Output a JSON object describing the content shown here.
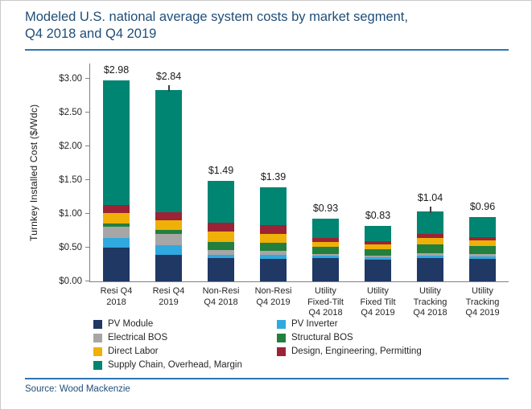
{
  "title": "Modeled U.S. national average system costs by market segment,\nQ4 2018 and Q4 2019",
  "source_label": "Source: Wood Mackenzie",
  "colors": {
    "title_text": "#1F4E79",
    "divider": "#2E75B6",
    "axis": "#7F7F7F",
    "source_text": "#1F4E79"
  },
  "chart_data": {
    "type": "bar",
    "stacked": true,
    "title": "Modeled U.S. national average system costs by market segment, Q4 2018 and Q4 2019",
    "xlabel": "",
    "ylabel": "Turnkey Installed Cost ($/Wdc)",
    "ylim": [
      0,
      3.0
    ],
    "ytick_values": [
      0,
      0.5,
      1.0,
      1.5,
      2.0,
      2.5,
      3.0
    ],
    "ytick_labels": [
      "$0.00",
      "$0.50",
      "$1.00",
      "$1.50",
      "$2.00",
      "$2.50",
      "$3.00"
    ],
    "grid": false,
    "legend_position": "bottom",
    "categories": [
      "Resi Q4 2018",
      "Resi Q4 2019",
      "Non-Resi Q4 2018",
      "Non-Resi Q4 2019",
      "Utility Fixed-Tilt Q4 2018",
      "Utility Fixed Tilt Q4 2019",
      "Utility Tracking Q4 2018",
      "Utility Tracking Q4 2019"
    ],
    "category_lines": [
      [
        "Resi Q4",
        "2018"
      ],
      [
        "Resi Q4",
        "2019"
      ],
      [
        "Non-Resi",
        "Q4 2018"
      ],
      [
        "Non-Resi",
        "Q4 2019"
      ],
      [
        "Utility",
        "Fixed-Tilt",
        "Q4 2018"
      ],
      [
        "Utility",
        "Fixed Tilt",
        "Q4 2019"
      ],
      [
        "Utility",
        "Tracking",
        "Q4 2018"
      ],
      [
        "Utility",
        "Tracking",
        "Q4 2019"
      ]
    ],
    "totals": [
      "$2.98",
      "$2.84",
      "$1.49",
      "$1.39",
      "$0.93",
      "$0.83",
      "$1.04",
      "$0.96"
    ],
    "error_ticks": [
      false,
      true,
      false,
      false,
      false,
      false,
      true,
      false
    ],
    "series": [
      {
        "name": "PV Module",
        "color": "#1F3864",
        "values": [
          0.5,
          0.4,
          0.35,
          0.34,
          0.35,
          0.33,
          0.35,
          0.34
        ]
      },
      {
        "name": "PV Inverter",
        "color": "#30A9DF",
        "values": [
          0.14,
          0.14,
          0.05,
          0.05,
          0.03,
          0.03,
          0.03,
          0.03
        ]
      },
      {
        "name": "Electrical BOS",
        "color": "#A6A6A6",
        "values": [
          0.17,
          0.17,
          0.07,
          0.06,
          0.03,
          0.03,
          0.04,
          0.04
        ]
      },
      {
        "name": "Structural BOS",
        "color": "#237F3D",
        "values": [
          0.05,
          0.05,
          0.12,
          0.12,
          0.1,
          0.09,
          0.13,
          0.12
        ]
      },
      {
        "name": "Direct Labor",
        "color": "#EFB008",
        "values": [
          0.15,
          0.15,
          0.15,
          0.14,
          0.08,
          0.07,
          0.09,
          0.08
        ]
      },
      {
        "name": "Design, Engineering, Permitting",
        "color": "#9B2335",
        "values": [
          0.12,
          0.12,
          0.13,
          0.12,
          0.06,
          0.05,
          0.06,
          0.05
        ]
      },
      {
        "name": "Supply Chain, Overhead, Margin",
        "color": "#008572",
        "values": [
          1.85,
          1.81,
          0.62,
          0.56,
          0.28,
          0.23,
          0.34,
          0.3
        ]
      }
    ]
  }
}
